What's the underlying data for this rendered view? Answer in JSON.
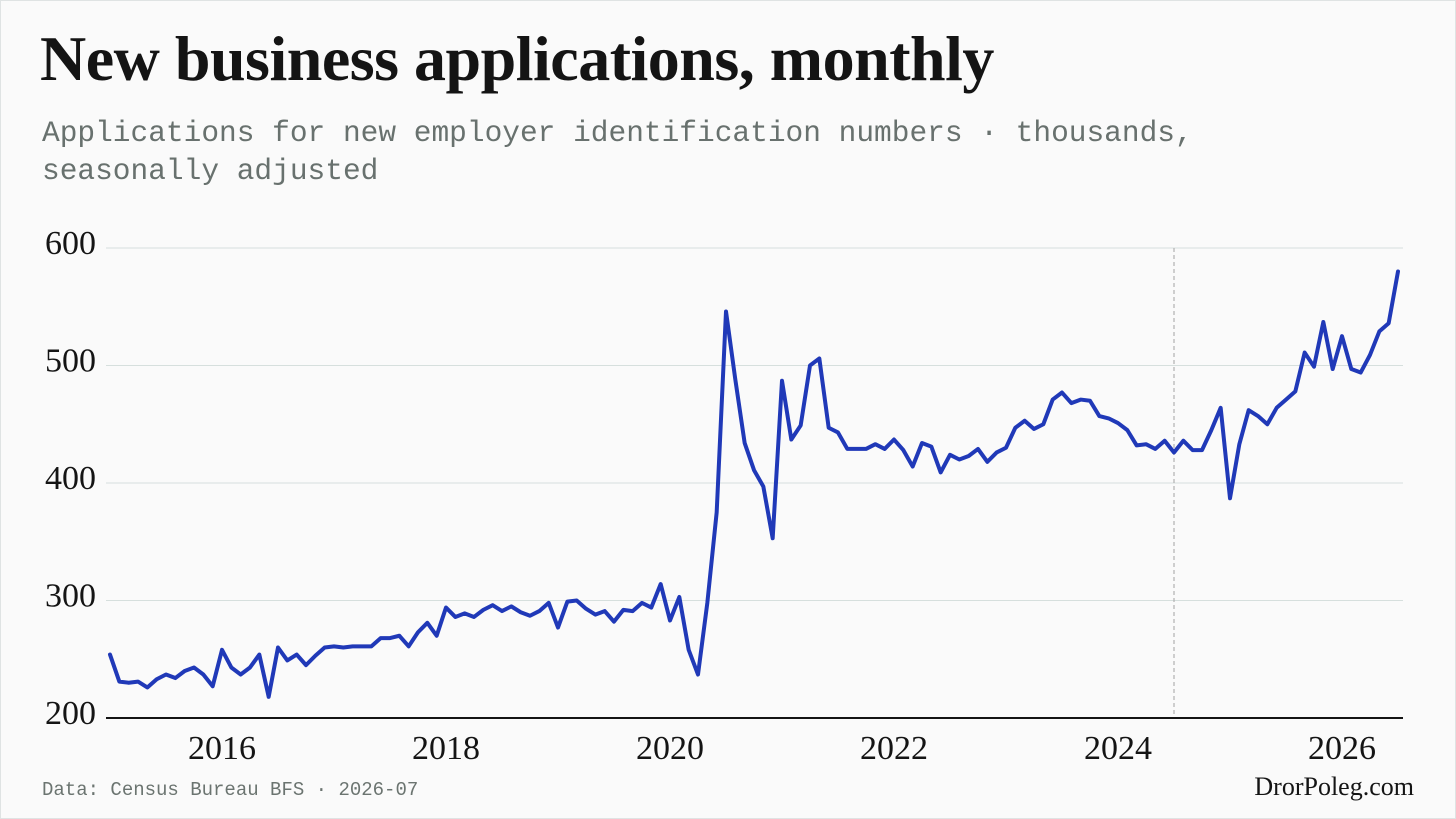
{
  "chart_data": {
    "type": "line",
    "title": "New business applications, monthly",
    "subtitle": "Applications for new employer identification numbers · thousands, seasonally adjusted",
    "source": "Data: Census Bureau BFS · 2026-07",
    "credit": "DrorPoleg.com",
    "color": "#2039b8",
    "grid": true,
    "reference_x": "2024-07",
    "xlim": [
      "2015-01",
      "2026-07"
    ],
    "xticks": [
      {
        "value": "2016-01",
        "label": "2016"
      },
      {
        "value": "2018-01",
        "label": "2018"
      },
      {
        "value": "2020-01",
        "label": "2020"
      },
      {
        "value": "2022-01",
        "label": "2022"
      },
      {
        "value": "2024-01",
        "label": "2024"
      },
      {
        "value": "2026-01",
        "label": "2026"
      }
    ],
    "ylim": [
      200,
      600
    ],
    "yticks": [
      200,
      300,
      400,
      500,
      600
    ],
    "x": [
      "2015-01",
      "2015-02",
      "2015-03",
      "2015-04",
      "2015-05",
      "2015-06",
      "2015-07",
      "2015-08",
      "2015-09",
      "2015-10",
      "2015-11",
      "2015-12",
      "2016-01",
      "2016-02",
      "2016-03",
      "2016-04",
      "2016-05",
      "2016-06",
      "2016-07",
      "2016-08",
      "2016-09",
      "2016-10",
      "2016-11",
      "2016-12",
      "2017-01",
      "2017-02",
      "2017-03",
      "2017-04",
      "2017-05",
      "2017-06",
      "2017-07",
      "2017-08",
      "2017-09",
      "2017-10",
      "2017-11",
      "2017-12",
      "2018-01",
      "2018-02",
      "2018-03",
      "2018-04",
      "2018-05",
      "2018-06",
      "2018-07",
      "2018-08",
      "2018-09",
      "2018-10",
      "2018-11",
      "2018-12",
      "2019-01",
      "2019-02",
      "2019-03",
      "2019-04",
      "2019-05",
      "2019-06",
      "2019-07",
      "2019-08",
      "2019-09",
      "2019-10",
      "2019-11",
      "2019-12",
      "2020-01",
      "2020-02",
      "2020-03",
      "2020-04",
      "2020-05",
      "2020-06",
      "2020-07",
      "2020-08",
      "2020-09",
      "2020-10",
      "2020-11",
      "2020-12",
      "2021-01",
      "2021-02",
      "2021-03",
      "2021-04",
      "2021-05",
      "2021-06",
      "2021-07",
      "2021-08",
      "2021-09",
      "2021-10",
      "2021-11",
      "2021-12",
      "2022-01",
      "2022-02",
      "2022-03",
      "2022-04",
      "2022-05",
      "2022-06",
      "2022-07",
      "2022-08",
      "2022-09",
      "2022-10",
      "2022-11",
      "2022-12",
      "2023-01",
      "2023-02",
      "2023-03",
      "2023-04",
      "2023-05",
      "2023-06",
      "2023-07",
      "2023-08",
      "2023-09",
      "2023-10",
      "2023-11",
      "2023-12",
      "2024-01",
      "2024-02",
      "2024-03",
      "2024-04",
      "2024-05",
      "2024-06",
      "2024-07",
      "2024-08",
      "2024-09",
      "2024-10",
      "2024-11",
      "2024-12",
      "2025-01",
      "2025-02",
      "2025-03",
      "2025-04",
      "2025-05",
      "2025-06",
      "2025-07",
      "2025-08",
      "2025-09",
      "2025-10",
      "2025-11",
      "2025-12",
      "2026-01",
      "2026-02",
      "2026-03",
      "2026-04",
      "2026-05",
      "2026-06",
      "2026-07"
    ],
    "values": [
      254,
      231,
      230,
      231,
      226,
      233,
      237,
      234,
      240,
      243,
      237,
      227,
      258,
      243,
      237,
      243,
      254,
      218,
      260,
      249,
      254,
      245,
      253,
      260,
      261,
      260,
      261,
      261,
      261,
      268,
      268,
      270,
      261,
      273,
      281,
      270,
      294,
      286,
      289,
      286,
      292,
      296,
      291,
      295,
      290,
      287,
      291,
      298,
      277,
      299,
      300,
      293,
      288,
      291,
      282,
      292,
      291,
      298,
      294,
      314,
      283,
      303,
      258,
      237,
      298,
      375,
      546,
      488,
      434,
      411,
      397,
      353,
      487,
      437,
      449,
      500,
      506,
      447,
      443,
      429,
      429,
      429,
      433,
      429,
      437,
      428,
      414,
      434,
      431,
      409,
      424,
      420,
      423,
      429,
      418,
      426,
      430,
      447,
      453,
      446,
      450,
      471,
      477,
      468,
      471,
      470,
      457,
      455,
      451,
      445,
      432,
      433,
      429,
      436,
      426,
      436,
      428,
      428,
      445,
      464,
      387,
      433,
      462,
      457,
      450,
      464,
      471,
      478,
      511,
      499,
      537,
      497,
      525,
      497,
      494,
      509,
      529,
      536,
      580
    ]
  }
}
